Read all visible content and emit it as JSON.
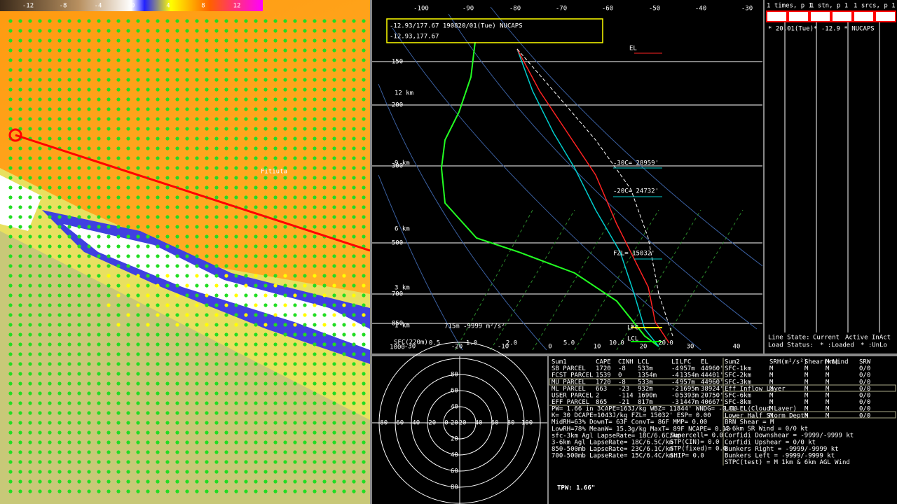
{
  "colorbar": {
    "labels": [
      "-12",
      "-8",
      "-4",
      "-0",
      "4",
      "8",
      "12"
    ]
  },
  "map": {
    "place": "Fitiuta"
  },
  "skewt": {
    "header": [
      "-12.93/177.67 190820/01(Tue) NUCAPS",
      "-12.93,177.67"
    ],
    "top_axis": [
      "-100",
      "-90",
      "-80",
      "-70",
      "-60",
      "-50",
      "-40",
      "-30"
    ],
    "pressure_labels": [
      "150",
      "200",
      "300",
      "500",
      "700",
      "850",
      "1000"
    ],
    "height_labels": [
      "12 km",
      "9 km",
      "6 km",
      "3 km",
      "1 km"
    ],
    "bottom_axis": [
      "-30",
      "-20",
      "-10",
      "0",
      "10",
      "20",
      "30",
      "40"
    ],
    "mixing_labels": [
      "0.5",
      "1.0",
      "2.0",
      "5.0",
      "10.0",
      "20.0"
    ],
    "annotations": [
      "EL",
      "-30C= 28959'",
      "-20C= 24732'",
      "FZL= 15032'",
      "LFC",
      "LCL",
      "715m -9999 m²/s²",
      "SFC(220m)"
    ]
  },
  "sidebar": {
    "lines": [
      "1 times, p 1",
      "1 stn, p 1",
      "1 srcs, p 1"
    ],
    "buttons": [
      "NxP",
      "PvP",
      "NxP",
      "PvP",
      "NxP",
      "PvP"
    ],
    "entry": "* 20.01(Tue)* -12.9 * NUCAPS",
    "line_state": [
      "Line State:",
      "Current",
      "Active",
      "InAct"
    ],
    "load_status": [
      "Load Status:",
      "* :Loaded",
      "* :UnLo"
    ]
  },
  "hodograph": {
    "x_labels": [
      "-80",
      "-60",
      "-40",
      "-20",
      "0",
      "20",
      "40",
      "60",
      "80",
      "100"
    ],
    "y_labels": [
      "80",
      "60",
      "40",
      "20",
      "20",
      "40",
      "60",
      "80"
    ]
  },
  "table": {
    "left": [
      [
        "Sum1",
        "CAPE",
        "CINH",
        "LCL",
        "LI",
        "LFC",
        "EL"
      ],
      [
        "SB PARCEL",
        "1720",
        "-8",
        "533m",
        "-4",
        "957m",
        "44960'"
      ],
      [
        "FCST PARCEL",
        "1539",
        "0",
        "1354m",
        "-4",
        "1354m",
        "44401'"
      ],
      [
        "MU PARCEL",
        "1720",
        "-8",
        "533m",
        "-4",
        "957m",
        "44960'"
      ],
      [
        "ML PARCEL",
        "663",
        "-23",
        "932m",
        "-2",
        "1695m",
        "38924'"
      ],
      [
        "USER PARCEL",
        "2",
        "-114",
        "1690m",
        "-0",
        "5393m",
        "20750'"
      ],
      [
        "EFF PARCEL",
        "865",
        "-21",
        "817m",
        "-3",
        "1447m",
        "40667'"
      ]
    ],
    "lines": [
      "PW= 1.66 in 3CAPE=163J/kg WBZ= 11844' WNDG= -0.00",
      "K= 30 DCAPE=1043J/kg FZL= 15032' ESP= 0.00",
      "MidRH=63% DownT= 63F ConvT= 86F MMP= 0.00",
      "LowRH=78% MeanW= 15.3g/kg MaxT= 89F NCAPE= 0.13",
      "sfc-3km Agl LapseRate= 18C/6.6C/km",
      "3-6km Agl LapseRate= 18C/6.5C/km",
      "850-500mb LapseRate= 23C/6.1C/km",
      "700-500mb LapseRate= 15C/6.4C/km"
    ],
    "indices": [
      "Supercell= 0.0",
      "STP(CIN)= 0.0",
      "STP(fixed)= 0.0",
      "SHIP= 0.0"
    ],
    "right": [
      [
        "Sum2",
        "SRH(m²/s²)",
        "Shear(kt)",
        "MnWind",
        "SRW"
      ],
      [
        "SFC-1km",
        "M",
        "M",
        "M",
        "0/0"
      ],
      [
        "SFC-2km",
        "M",
        "M",
        "M",
        "0/0"
      ],
      [
        "SFC-3km",
        "M",
        "M",
        "M",
        "0/0"
      ],
      [
        "Eff Inflow Layer",
        "M",
        "M",
        "M",
        "0/0"
      ],
      [
        "SFC-6km",
        "M",
        "M",
        "M",
        "0/0"
      ],
      [
        "SFC-8km",
        "M",
        "M",
        "M",
        "0/0"
      ],
      [
        "LCL-EL(Cloud Layer)",
        "M",
        "M",
        "M",
        "0/0"
      ],
      [
        "Lower Half Storm Depth",
        "M",
        "M",
        "M",
        "0/0"
      ]
    ],
    "right_lines": [
      "BRN Shear = M",
      "4-6km SR Wind = 0/0 kt",
      "Corfidi Downshear = -9999/-9999 kt",
      "Corfidi Upshear = 0/0 kt",
      "Bunkers Right = -9999/-9999 kt",
      "Bunkers Left = -9999/-9999 kt",
      "STPC(test) = M 1km & 6km AGL Wind"
    ]
  },
  "tpw": "TPW: 1.66\""
}
